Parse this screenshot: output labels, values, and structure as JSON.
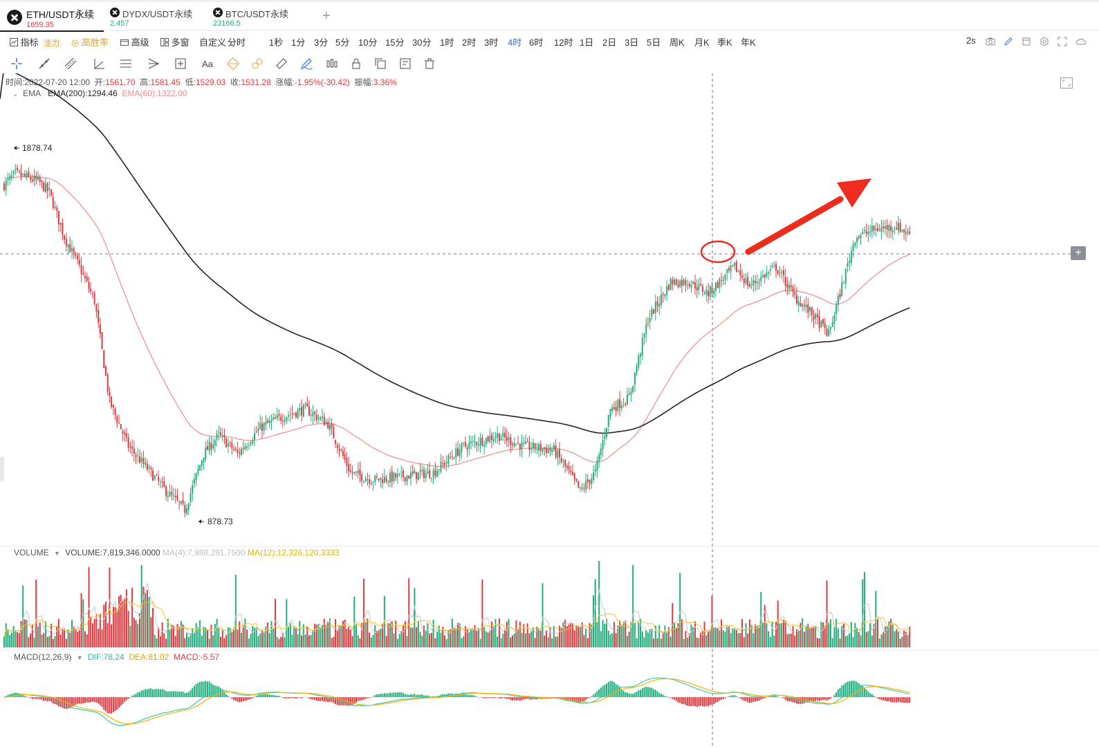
{
  "tabs": [
    {
      "name": "ETH/USDT永续",
      "price": "1659.35",
      "price_color": "#e2383d",
      "active": true
    },
    {
      "name": "DYDX/USDT永续",
      "price": "2.457",
      "price_color": "#1fae7b",
      "active": false
    },
    {
      "name": "BTC/USDT永续",
      "price": "23166.5",
      "price_color": "#1fae7b",
      "active": false
    }
  ],
  "toolbar": {
    "indicator_label": "指标",
    "main_badge": "主力",
    "win_rate_label": "高胜率",
    "advanced_label": "高级",
    "multi_window_label": "多窗",
    "custom_label": "自定义",
    "intervals": [
      "分时",
      "1秒",
      "1分",
      "3分",
      "5分",
      "10分",
      "15分",
      "30分",
      "1时",
      "2时",
      "3时",
      "4时",
      "6时",
      "12时",
      "1日",
      "2日",
      "3日",
      "5日",
      "周K",
      "月K",
      "季K",
      "年K"
    ],
    "active_interval": "4时",
    "refresh_label": "2s"
  },
  "drawing_tools": [
    "crosshair-icon",
    "trend-line-icon",
    "parallel-lines-icon",
    "angle-icon",
    "horizontal-lines-icon",
    "pitchfork-icon",
    "rectangle-icon",
    "text-icon",
    "fib-icon",
    "gann-icon",
    "measure-icon",
    "brush-icon",
    "pattern-icon",
    "lock-icon",
    "copy-icon",
    "template-icon",
    "delete-icon"
  ],
  "ohlc": {
    "time_label": "时间:",
    "time": "2022-07-20 12:00",
    "open_label": "开:",
    "open": "1561.70",
    "high_label": "高:",
    "high": "1581.45",
    "low_label": "低:",
    "low": "1529.03",
    "close_label": "收:",
    "close": "1531.28",
    "change_label": "涨幅:",
    "change": "-1.95%(-30.42)",
    "amplitude_label": "振幅:",
    "amplitude": "3.36%"
  },
  "ema": {
    "name": "EMA",
    "ema200": "EMA(200):1294.46",
    "ema60": "EMA(60):1322.00"
  },
  "volume": {
    "name": "VOLUME",
    "value": "VOLUME:7,819,346.0000",
    "ma4": "MA(4):7,988,291.7500",
    "ma12": "MA(12):12,326,120.3333"
  },
  "macd": {
    "name": "MACD(12,26,9)",
    "dif": "DIF:78.24",
    "dea": "DEA:81.02",
    "macd": "MACD:-5.57"
  },
  "chart_data": {
    "type": "candlestick",
    "interval": "4时",
    "high_marker": "1878.74",
    "low_marker": "878.73",
    "colors": {
      "up": "#1fae7b",
      "down": "#e2383d",
      "ema200": "#222222",
      "ema60": "#f08a8a",
      "ma4": "#bdbdbd",
      "ma12": "#f5c518",
      "dif": "#3cc7b4",
      "dea": "#f5b400"
    }
  }
}
